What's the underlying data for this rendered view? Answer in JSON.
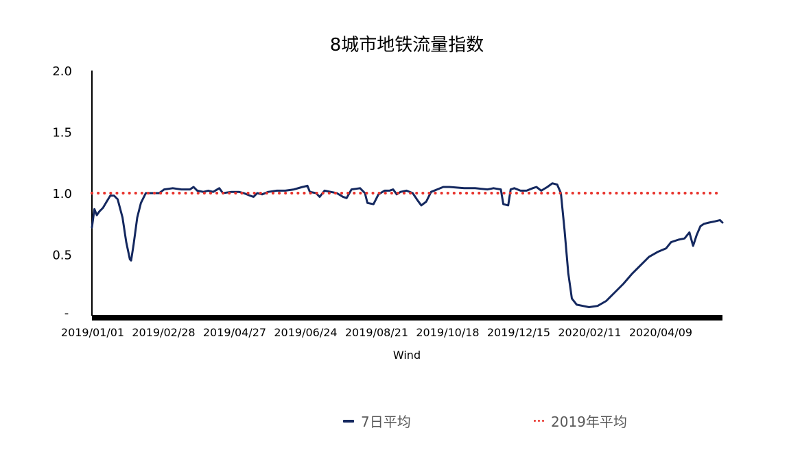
{
  "chart_data": {
    "type": "line",
    "title": "8城市地铁流量指数",
    "xlabel": "Wind",
    "ylabel": "",
    "ylim": [
      0,
      2.0
    ],
    "y_ticks": [
      "2.0",
      "1.5",
      "1.0",
      "0.5",
      "-"
    ],
    "y_tick_values": [
      2.0,
      1.5,
      1.0,
      0.5,
      0
    ],
    "x_ticks": [
      "2019/01/01",
      "2019/02/28",
      "2019/04/27",
      "2019/06/24",
      "2019/08/21",
      "2019/10/18",
      "2019/12/15",
      "2020/02/11",
      "2020/04/09"
    ],
    "x_range": [
      "2019/01/01",
      "2020/05/30"
    ],
    "legend_position": "bottom",
    "series": [
      {
        "name": "7日平均",
        "color": "#14285f",
        "style": "solid",
        "points": [
          [
            "2019/01/01",
            0.72
          ],
          [
            "2019/01/03",
            0.87
          ],
          [
            "2019/01/05",
            0.82
          ],
          [
            "2019/01/07",
            0.85
          ],
          [
            "2019/01/10",
            0.88
          ],
          [
            "2019/01/13",
            0.93
          ],
          [
            "2019/01/16",
            0.98
          ],
          [
            "2019/01/19",
            0.98
          ],
          [
            "2019/01/22",
            0.95
          ],
          [
            "2019/01/26",
            0.8
          ],
          [
            "2019/01/29",
            0.6
          ],
          [
            "2019/02/01",
            0.46
          ],
          [
            "2019/02/02",
            0.45
          ],
          [
            "2019/02/04",
            0.58
          ],
          [
            "2019/02/07",
            0.8
          ],
          [
            "2019/02/10",
            0.92
          ],
          [
            "2019/02/14",
            1.0
          ],
          [
            "2019/02/20",
            1.0
          ],
          [
            "2019/02/25",
            1.0
          ],
          [
            "2019/03/01",
            1.03
          ],
          [
            "2019/03/08",
            1.04
          ],
          [
            "2019/03/15",
            1.03
          ],
          [
            "2019/03/22",
            1.03
          ],
          [
            "2019/03/25",
            1.05
          ],
          [
            "2019/03/28",
            1.02
          ],
          [
            "2019/04/02",
            1.01
          ],
          [
            "2019/04/06",
            1.02
          ],
          [
            "2019/04/10",
            1.01
          ],
          [
            "2019/04/15",
            1.04
          ],
          [
            "2019/04/18",
            1.0
          ],
          [
            "2019/04/25",
            1.01
          ],
          [
            "2019/05/01",
            1.01
          ],
          [
            "2019/05/05",
            1.0
          ],
          [
            "2019/05/10",
            0.98
          ],
          [
            "2019/05/13",
            0.97
          ],
          [
            "2019/05/16",
            1.0
          ],
          [
            "2019/05/20",
            0.99
          ],
          [
            "2019/05/25",
            1.01
          ],
          [
            "2019/06/01",
            1.02
          ],
          [
            "2019/06/08",
            1.02
          ],
          [
            "2019/06/15",
            1.03
          ],
          [
            "2019/06/22",
            1.05
          ],
          [
            "2019/06/26",
            1.06
          ],
          [
            "2019/06/28",
            1.01
          ],
          [
            "2019/07/03",
            1.0
          ],
          [
            "2019/07/06",
            0.97
          ],
          [
            "2019/07/10",
            1.02
          ],
          [
            "2019/07/15",
            1.01
          ],
          [
            "2019/07/20",
            1.0
          ],
          [
            "2019/07/25",
            0.97
          ],
          [
            "2019/07/28",
            0.96
          ],
          [
            "2019/08/01",
            1.03
          ],
          [
            "2019/08/08",
            1.04
          ],
          [
            "2019/08/12",
            1.0
          ],
          [
            "2019/08/14",
            0.92
          ],
          [
            "2019/08/19",
            0.91
          ],
          [
            "2019/08/23",
            0.99
          ],
          [
            "2019/08/28",
            1.02
          ],
          [
            "2019/09/01",
            1.02
          ],
          [
            "2019/09/04",
            1.03
          ],
          [
            "2019/09/07",
            0.99
          ],
          [
            "2019/09/10",
            1.01
          ],
          [
            "2019/09/15",
            1.02
          ],
          [
            "2019/09/20",
            1.0
          ],
          [
            "2019/09/24",
            0.94
          ],
          [
            "2019/09/27",
            0.9
          ],
          [
            "2019/10/01",
            0.93
          ],
          [
            "2019/10/05",
            1.01
          ],
          [
            "2019/10/10",
            1.03
          ],
          [
            "2019/10/15",
            1.05
          ],
          [
            "2019/10/20",
            1.05
          ],
          [
            "2019/11/01",
            1.04
          ],
          [
            "2019/11/10",
            1.04
          ],
          [
            "2019/11/20",
            1.03
          ],
          [
            "2019/11/25",
            1.04
          ],
          [
            "2019/12/01",
            1.03
          ],
          [
            "2019/12/03",
            0.91
          ],
          [
            "2019/12/07",
            0.9
          ],
          [
            "2019/12/09",
            1.03
          ],
          [
            "2019/12/12",
            1.04
          ],
          [
            "2019/12/17",
            1.02
          ],
          [
            "2019/12/22",
            1.02
          ],
          [
            "2019/12/27",
            1.04
          ],
          [
            "2019/12/30",
            1.05
          ],
          [
            "2020/01/03",
            1.02
          ],
          [
            "2020/01/08",
            1.05
          ],
          [
            "2020/01/12",
            1.08
          ],
          [
            "2020/01/16",
            1.07
          ],
          [
            "2020/01/19",
            1.0
          ],
          [
            "2020/01/22",
            0.7
          ],
          [
            "2020/01/25",
            0.35
          ],
          [
            "2020/01/28",
            0.14
          ],
          [
            "2020/02/01",
            0.09
          ],
          [
            "2020/02/06",
            0.08
          ],
          [
            "2020/02/11",
            0.07
          ],
          [
            "2020/02/18",
            0.08
          ],
          [
            "2020/02/25",
            0.12
          ],
          [
            "2020/03/03",
            0.19
          ],
          [
            "2020/03/10",
            0.26
          ],
          [
            "2020/03/17",
            0.34
          ],
          [
            "2020/03/24",
            0.41
          ],
          [
            "2020/03/31",
            0.48
          ],
          [
            "2020/04/07",
            0.52
          ],
          [
            "2020/04/14",
            0.55
          ],
          [
            "2020/04/18",
            0.6
          ],
          [
            "2020/04/24",
            0.62
          ],
          [
            "2020/04/29",
            0.63
          ],
          [
            "2020/05/03",
            0.68
          ],
          [
            "2020/05/06",
            0.57
          ],
          [
            "2020/05/09",
            0.66
          ],
          [
            "2020/05/12",
            0.73
          ],
          [
            "2020/05/15",
            0.75
          ],
          [
            "2020/05/19",
            0.76
          ],
          [
            "2020/05/24",
            0.77
          ],
          [
            "2020/05/28",
            0.78
          ],
          [
            "2020/05/30",
            0.76
          ]
        ]
      },
      {
        "name": "2019年平均",
        "color": "#e8322b",
        "style": "dotted",
        "points": [
          [
            "2019/01/01",
            1.0
          ],
          [
            "2020/05/30",
            1.0
          ]
        ]
      }
    ]
  }
}
